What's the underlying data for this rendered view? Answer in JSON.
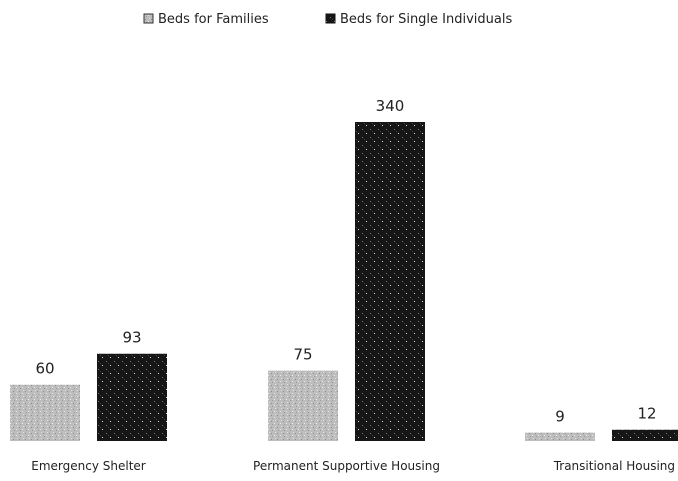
{
  "chart_data": {
    "type": "bar",
    "categories": [
      "Emergency Shelter",
      "Permanent Supportive Housing",
      "Transitional Housing"
    ],
    "series": [
      {
        "name": "Beds for Families",
        "values": [
          60,
          75,
          9
        ],
        "color": "#bdbdbd"
      },
      {
        "name": "Beds for Single Individuals",
        "values": [
          93,
          340,
          12
        ],
        "color": "#1a1a1a"
      }
    ],
    "legend_position": "top",
    "grid": false,
    "ylim": [
      0,
      340
    ]
  }
}
